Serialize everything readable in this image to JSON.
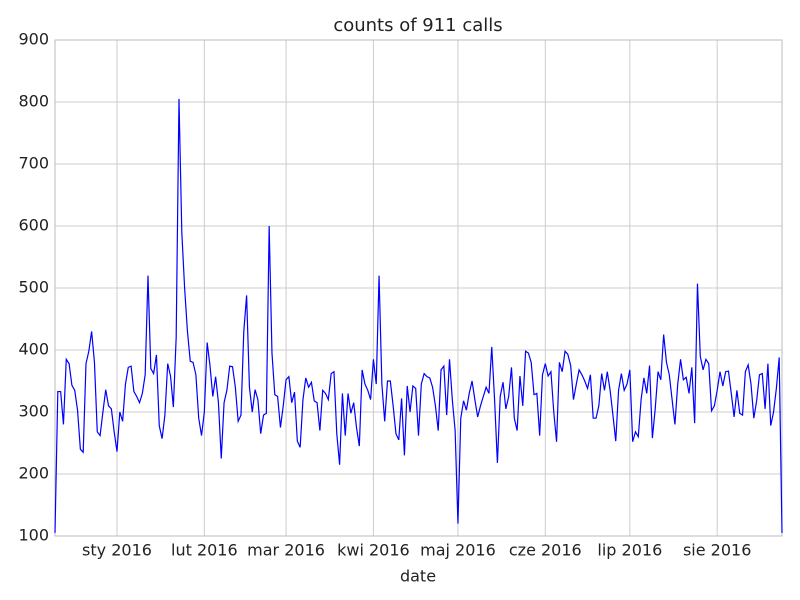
{
  "chart_data": {
    "type": "line",
    "title": "counts of 911 calls",
    "xlabel": "date",
    "color": "#0000ff",
    "grid": true,
    "values": [
      105,
      333,
      333,
      280,
      385,
      378,
      343,
      335,
      303,
      240,
      235,
      378,
      398,
      430,
      380,
      268,
      262,
      300,
      336,
      310,
      305,
      268,
      236,
      300,
      285,
      345,
      372,
      374,
      333,
      325,
      315,
      330,
      360,
      520,
      370,
      362,
      392,
      278,
      257,
      295,
      378,
      358,
      308,
      420,
      805,
      590,
      500,
      430,
      382,
      380,
      360,
      290,
      262,
      300,
      412,
      375,
      325,
      357,
      315,
      225,
      315,
      335,
      374,
      373,
      340,
      285,
      295,
      430,
      488,
      340,
      300,
      336,
      320,
      265,
      295,
      298,
      600,
      395,
      328,
      325,
      275,
      310,
      352,
      357,
      315,
      332,
      253,
      243,
      320,
      355,
      340,
      348,
      318,
      315,
      270,
      335,
      330,
      320,
      362,
      365,
      265,
      215,
      330,
      262,
      330,
      298,
      315,
      275,
      245,
      368,
      345,
      335,
      320,
      385,
      345,
      520,
      345,
      285,
      350,
      350,
      310,
      265,
      255,
      322,
      230,
      342,
      300,
      342,
      338,
      262,
      345,
      362,
      357,
      355,
      340,
      310,
      270,
      368,
      374,
      295,
      385,
      320,
      270,
      120,
      290,
      318,
      303,
      330,
      350,
      320,
      292,
      310,
      325,
      340,
      330,
      405,
      320,
      218,
      325,
      348,
      305,
      325,
      372,
      290,
      270,
      358,
      310,
      398,
      395,
      380,
      328,
      330,
      262,
      360,
      378,
      358,
      365,
      300,
      252,
      380,
      365,
      398,
      393,
      375,
      320,
      345,
      368,
      360,
      350,
      338,
      360,
      290,
      290,
      310,
      362,
      335,
      365,
      335,
      295,
      253,
      335,
      362,
      335,
      345,
      368,
      252,
      268,
      260,
      320,
      355,
      330,
      375,
      258,
      305,
      365,
      352,
      425,
      380,
      360,
      320,
      280,
      345,
      385,
      352,
      356,
      330,
      372,
      282,
      507,
      390,
      368,
      385,
      378,
      302,
      310,
      335,
      365,
      342,
      365,
      366,
      330,
      292,
      335,
      298,
      295,
      365,
      376,
      345,
      290,
      318,
      360,
      362,
      305,
      378,
      278,
      300,
      338,
      388,
      105
    ],
    "xlim": [
      0,
      258
    ],
    "xticks": [
      {
        "value": 22,
        "label": "sty 2016"
      },
      {
        "value": 53,
        "label": "lut 2016"
      },
      {
        "value": 82,
        "label": "mar 2016"
      },
      {
        "value": 113,
        "label": "kwi 2016"
      },
      {
        "value": 143,
        "label": "maj 2016"
      },
      {
        "value": 174,
        "label": "cze 2016"
      },
      {
        "value": 204,
        "label": "lip 2016"
      },
      {
        "value": 235,
        "label": "sie 2016"
      }
    ],
    "ylim": [
      100,
      900
    ],
    "yticks": [
      100,
      200,
      300,
      400,
      500,
      600,
      700,
      800,
      900
    ]
  }
}
